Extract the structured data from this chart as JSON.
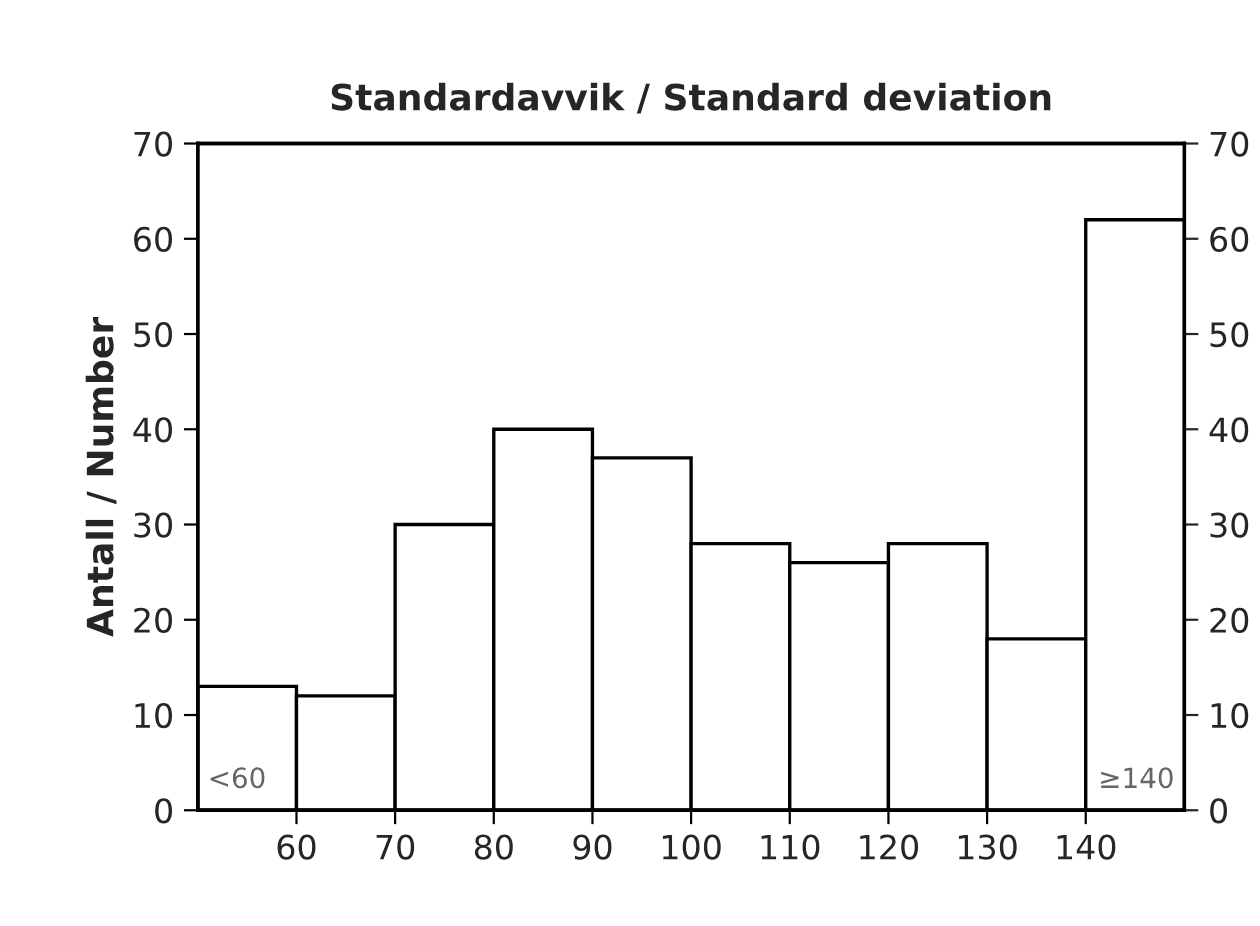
{
  "chart_data": {
    "type": "histogram",
    "title": "Standardavvik / Standard deviation",
    "ylabel": "Antall / Number",
    "bins": [
      50,
      60,
      70,
      80,
      90,
      100,
      110,
      120,
      130,
      140,
      150
    ],
    "values": [
      13,
      12,
      30,
      40,
      37,
      28,
      26,
      28,
      18,
      62
    ],
    "color": "#ffffff",
    "xlim": [
      50,
      150
    ],
    "xticks": [
      60,
      70,
      80,
      90,
      100,
      110,
      120,
      130,
      140
    ],
    "ylim": [
      0,
      70
    ],
    "yticks": [
      0,
      10,
      20,
      30,
      40,
      50,
      60,
      70
    ],
    "y2lim": [
      0,
      70
    ],
    "y2ticks": [
      0,
      10,
      20,
      30,
      40,
      50,
      60,
      70
    ],
    "annotations": [
      "<60",
      "≥140"
    ],
    "grid": false,
    "legend": false
  }
}
